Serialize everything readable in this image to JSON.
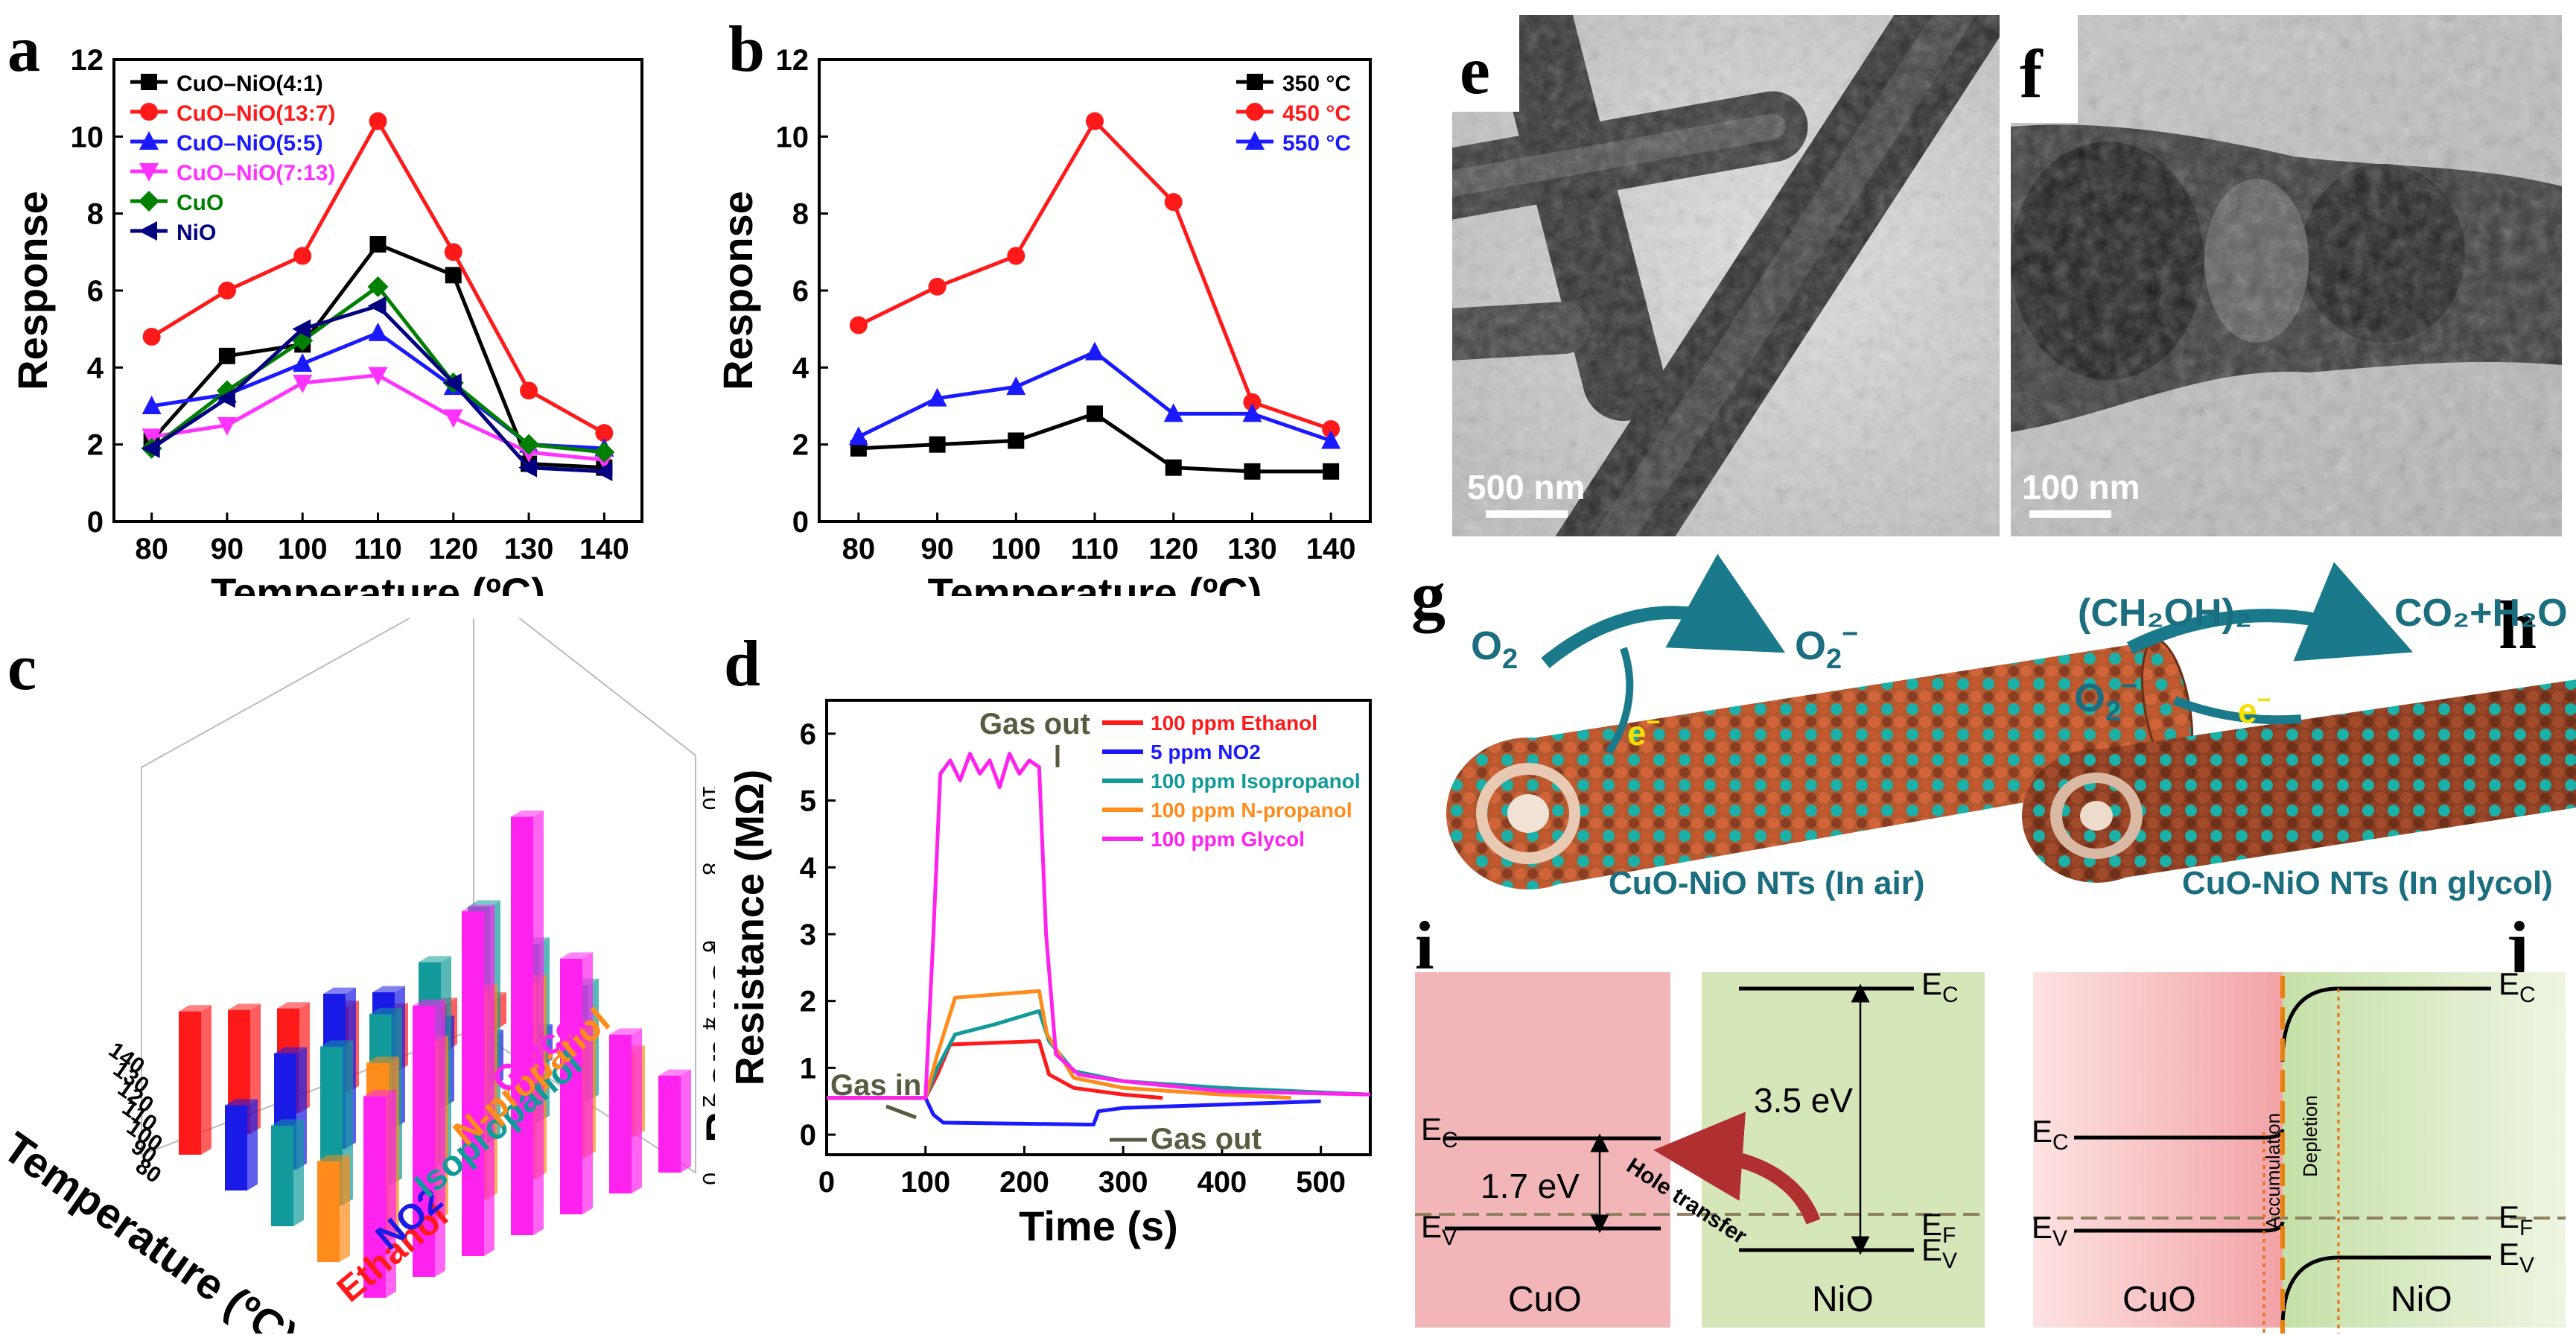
{
  "panel_labels": {
    "a": "a",
    "b": "b",
    "c": "c",
    "d": "d",
    "e": "e",
    "f": "f",
    "g": "g",
    "h": "h",
    "i": "i",
    "j": "j"
  },
  "chart_data": [
    {
      "id": "a",
      "type": "line",
      "title": "",
      "xlabel": "Temperature (ºC)",
      "ylabel": "Response",
      "x": [
        80,
        90,
        100,
        110,
        120,
        130,
        140
      ],
      "xlim": [
        75,
        145
      ],
      "ylim": [
        0,
        12
      ],
      "xticks": [
        "80",
        "90",
        "100",
        "110",
        "120",
        "130",
        "140"
      ],
      "yticks": [
        "0",
        "2",
        "4",
        "6",
        "8",
        "10",
        "12"
      ],
      "legend_position": "top-left",
      "series": [
        {
          "name": "CuO–NiO(4:1)",
          "color": "#000000",
          "marker": "square",
          "values": [
            2.1,
            4.3,
            4.6,
            7.2,
            6.4,
            1.5,
            1.4
          ]
        },
        {
          "name": "CuO–NiO(13:7)",
          "color": "#ff1a1a",
          "marker": "circle",
          "values": [
            4.8,
            6.0,
            6.9,
            10.4,
            7.0,
            3.4,
            2.3
          ]
        },
        {
          "name": "CuO–NiO(5:5)",
          "color": "#1a1aff",
          "marker": "triangle-up",
          "values": [
            3.0,
            3.3,
            4.1,
            4.9,
            3.5,
            2.0,
            1.9
          ]
        },
        {
          "name": "CuO–NiO(7:13)",
          "color": "#ff33ff",
          "marker": "triangle-down",
          "values": [
            2.2,
            2.5,
            3.6,
            3.8,
            2.7,
            1.8,
            1.6
          ]
        },
        {
          "name": "CuO",
          "color": "#008000",
          "marker": "diamond",
          "values": [
            1.9,
            3.4,
            4.7,
            6.1,
            3.6,
            2.0,
            1.8
          ]
        },
        {
          "name": "NiO",
          "color": "#000080",
          "marker": "triangle-left",
          "values": [
            1.9,
            3.2,
            5.0,
            5.6,
            3.6,
            1.4,
            1.3
          ]
        }
      ]
    },
    {
      "id": "b",
      "type": "line",
      "title": "",
      "xlabel": "Temperature (ºC)",
      "ylabel": "Response",
      "x": [
        80,
        90,
        100,
        110,
        120,
        130,
        140
      ],
      "xlim": [
        75,
        145
      ],
      "ylim": [
        0,
        12
      ],
      "xticks": [
        "80",
        "90",
        "100",
        "110",
        "120",
        "130",
        "140"
      ],
      "yticks": [
        "0",
        "2",
        "4",
        "6",
        "8",
        "10",
        "12"
      ],
      "legend_position": "top-right",
      "series": [
        {
          "name": "350 °C",
          "color": "#000000",
          "marker": "square",
          "values": [
            1.9,
            2.0,
            2.1,
            2.8,
            1.4,
            1.3,
            1.3
          ]
        },
        {
          "name": "450 °C",
          "color": "#ff1a1a",
          "marker": "circle",
          "values": [
            5.1,
            6.1,
            6.9,
            10.4,
            8.3,
            3.1,
            2.4
          ]
        },
        {
          "name": "550 °C",
          "color": "#1a1aff",
          "marker": "triangle-up",
          "values": [
            2.2,
            3.2,
            3.5,
            4.4,
            2.8,
            2.8,
            2.1
          ]
        }
      ]
    },
    {
      "id": "c",
      "type": "bar3d",
      "xlabel": "Temperature (ºC)",
      "zlabel": "Response",
      "temperatures": [
        "80",
        "90",
        "100",
        "110",
        "120",
        "130",
        "140"
      ],
      "zticks": [
        "0",
        "2",
        "4",
        "6",
        "8",
        "10"
      ],
      "zlim": [
        0,
        11
      ],
      "series": [
        {
          "name": "Ethanol",
          "color": "#ff1a1a",
          "values": [
            3.7,
            3.2,
            2.7,
            2.2,
            1.6,
            1.2,
            0.8
          ]
        },
        {
          "name": "NO2",
          "color": "#1a1ae6",
          "values": [
            2.2,
            3.0,
            4.0,
            3.5,
            2.2,
            1.3,
            0.9
          ]
        },
        {
          "name": "Isopropanol",
          "color": "#129a9a",
          "values": [
            2.6,
            4.1,
            4.4,
            5.2,
            6.1,
            4.6,
            3.0
          ]
        },
        {
          "name": "N-propanol",
          "color": "#ff8c1a",
          "values": [
            2.6,
            4.6,
            4.6,
            5.4,
            5.1,
            3.4,
            2.2
          ]
        },
        {
          "name": "Glycol",
          "color": "#ff22ee",
          "values": [
            5.2,
            7.0,
            8.9,
            10.8,
            6.6,
            4.1,
            2.5
          ]
        }
      ]
    },
    {
      "id": "d",
      "type": "line",
      "xlabel": "Time (s)",
      "ylabel": "Resistance (MΩ)",
      "xlim": [
        0,
        550
      ],
      "ylim": [
        -0.3,
        6.5
      ],
      "xticks": [
        "0",
        "100",
        "200",
        "300",
        "400",
        "500"
      ],
      "yticks": [
        "0",
        "1",
        "2",
        "3",
        "4",
        "5",
        "6"
      ],
      "legend_position": "top-right",
      "annotations": {
        "gas_out_top": "Gas out",
        "gas_in": "Gas in",
        "gas_out_bottom": "Gas out"
      },
      "series": [
        {
          "name": "100 ppm Ethanol",
          "color": "#ff1a1a",
          "points": [
            [
              0,
              0.55
            ],
            [
              100,
              0.55
            ],
            [
              112,
              0.9
            ],
            [
              125,
              1.35
            ],
            [
              215,
              1.4
            ],
            [
              225,
              0.9
            ],
            [
              250,
              0.7
            ],
            [
              300,
              0.6
            ],
            [
              340,
              0.55
            ]
          ]
        },
        {
          "name": "5 ppm NO2",
          "color": "#1a1aff",
          "points": [
            [
              0,
              0.55
            ],
            [
              100,
              0.55
            ],
            [
              108,
              0.3
            ],
            [
              118,
              0.18
            ],
            [
              270,
              0.15
            ],
            [
              275,
              0.35
            ],
            [
              300,
              0.4
            ],
            [
              400,
              0.45
            ],
            [
              500,
              0.5
            ]
          ]
        },
        {
          "name": "100 ppm Isopropanol",
          "color": "#129a9a",
          "points": [
            [
              0,
              0.55
            ],
            [
              100,
              0.55
            ],
            [
              112,
              1.0
            ],
            [
              130,
              1.5
            ],
            [
              170,
              1.65
            ],
            [
              215,
              1.85
            ],
            [
              225,
              1.4
            ],
            [
              250,
              0.95
            ],
            [
              300,
              0.8
            ],
            [
              400,
              0.7
            ],
            [
              550,
              0.6
            ]
          ]
        },
        {
          "name": "100 ppm N-propanol",
          "color": "#ff8c1a",
          "points": [
            [
              0,
              0.55
            ],
            [
              100,
              0.55
            ],
            [
              112,
              1.2
            ],
            [
              130,
              2.05
            ],
            [
              215,
              2.15
            ],
            [
              223,
              1.5
            ],
            [
              250,
              0.85
            ],
            [
              300,
              0.7
            ],
            [
              400,
              0.6
            ],
            [
              470,
              0.55
            ]
          ]
        },
        {
          "name": "100 ppm Glycol",
          "color": "#ff22ee",
          "points": [
            [
              0,
              0.55
            ],
            [
              100,
              0.55
            ],
            [
              108,
              3.0
            ],
            [
              115,
              5.4
            ],
            [
              125,
              5.6
            ],
            [
              135,
              5.3
            ],
            [
              145,
              5.7
            ],
            [
              155,
              5.4
            ],
            [
              165,
              5.6
            ],
            [
              175,
              5.2
            ],
            [
              185,
              5.7
            ],
            [
              195,
              5.4
            ],
            [
              205,
              5.6
            ],
            [
              215,
              5.5
            ],
            [
              222,
              3.0
            ],
            [
              232,
              1.2
            ],
            [
              255,
              0.9
            ],
            [
              300,
              0.8
            ],
            [
              400,
              0.65
            ],
            [
              550,
              0.6
            ]
          ]
        }
      ]
    }
  ],
  "tem": {
    "e_scale": "500 nm",
    "f_scale": "100 nm"
  },
  "schematic": {
    "g_left": "O",
    "g_left_sub": "2",
    "g_right": "O",
    "g_right_sub": "2",
    "g_right_sup": "−",
    "g_electron": "e",
    "g_electron_sup": "−",
    "g_caption": "CuO-NiO NTs (In air)",
    "h_reactant": "(CH₂OH)₂",
    "h_oxygen": "O",
    "h_oxygen_sub": "2",
    "h_oxygen_sup": "−",
    "h_product": "CO₂+H₂O",
    "h_electron": "e",
    "h_electron_sup": "−",
    "h_caption": "CuO-NiO NTs (In glycol)"
  },
  "bands_i": {
    "ec": "E",
    "ec_sub": "C",
    "ev": "E",
    "ev_sub": "V",
    "ef": "E",
    "ef_sub": "F",
    "cuo_gap": "1.7 eV",
    "nio_gap": "3.5 eV",
    "hole_transfer": "Hole transfer",
    "cuo": "CuO",
    "nio": "NiO"
  },
  "bands_j": {
    "ec": "E",
    "ec_sub": "C",
    "ev": "E",
    "ev_sub": "V",
    "ef": "E",
    "ef_sub": "F",
    "accumulation": "Accumulation",
    "depletion": "Depletion",
    "cuo": "CuO",
    "nio": "NiO"
  }
}
